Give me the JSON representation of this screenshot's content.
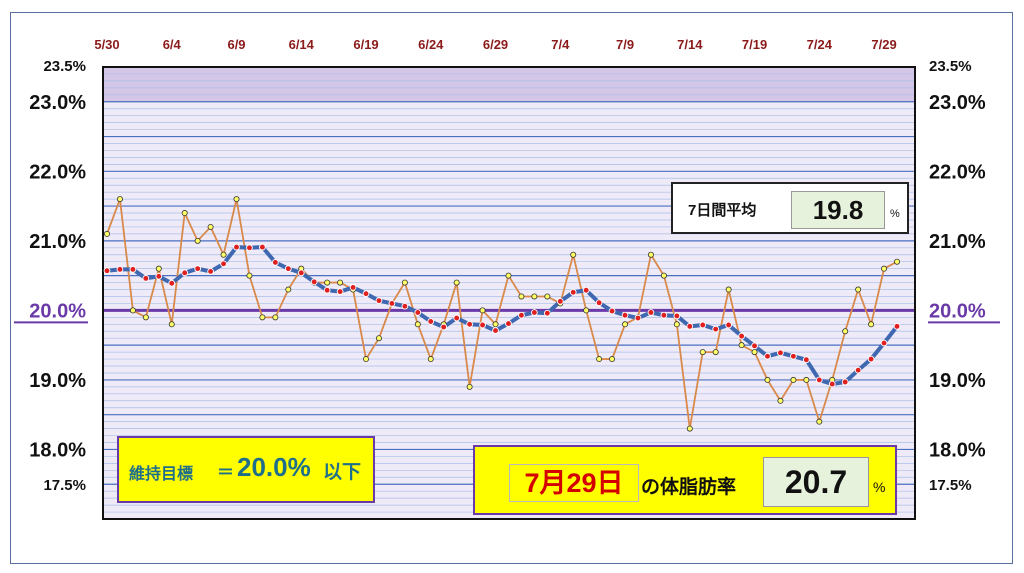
{
  "chart_data": {
    "type": "line",
    "x_tick_labels": [
      "5/30",
      "6/4",
      "6/9",
      "6/14",
      "6/19",
      "6/24",
      "6/29",
      "7/4",
      "7/9",
      "7/14",
      "7/19",
      "7/24",
      "7/29"
    ],
    "ylim": [
      17.0,
      23.5
    ],
    "y_tick_labels_left": [
      "23.5%",
      "23.0%",
      "22.0%",
      "21.0%",
      "20.0%",
      "19.0%",
      "18.0%",
      "17.5%"
    ],
    "y_tick_labels_right": [
      "23.5%",
      "23.0%",
      "22.0%",
      "21.0%",
      "20.0%",
      "19.0%",
      "18.0%",
      "17.5%"
    ],
    "goal_line": 20.0,
    "series": [
      {
        "values": [
          21.1,
          21.6,
          20.0,
          19.9,
          20.6,
          19.8,
          21.4,
          21.0,
          21.2,
          20.8,
          21.6,
          20.5,
          19.9,
          19.9,
          20.3,
          20.6,
          20.4,
          20.4,
          20.4,
          20.3,
          19.3,
          19.6,
          20.1,
          20.4,
          19.8,
          19.3,
          19.8,
          20.4,
          18.9,
          20.0,
          19.8,
          20.5,
          20.2,
          20.2,
          20.2,
          20.1,
          20.8,
          20.0,
          19.3,
          19.3,
          19.8,
          19.9,
          20.8,
          20.5,
          19.8,
          18.3,
          19.4,
          19.4,
          20.3,
          19.5,
          19.4,
          19.0,
          18.7,
          19.0,
          19.0,
          18.4,
          19.0,
          19.7,
          20.3,
          19.8,
          20.6,
          20.7
        ]
      },
      {
        "values": [
          20.57,
          20.59,
          20.59,
          20.46,
          20.49,
          20.39,
          20.54,
          20.6,
          20.56,
          20.67,
          20.91,
          20.9,
          20.91,
          20.69,
          20.6,
          20.54,
          20.41,
          20.29,
          20.27,
          20.33,
          20.24,
          20.14,
          20.1,
          20.06,
          19.97,
          19.84,
          19.76,
          19.89,
          19.8,
          19.79,
          19.71,
          19.81,
          19.93,
          19.97,
          19.96,
          20.13,
          20.26,
          20.29,
          20.11,
          19.99,
          19.93,
          19.89,
          19.97,
          19.93,
          19.92,
          19.77,
          19.79,
          19.73,
          19.79,
          19.63,
          19.49,
          19.34,
          19.39,
          19.34,
          19.29,
          19.0,
          18.94,
          18.97,
          19.14,
          19.3,
          19.53,
          19.77
        ]
      }
    ]
  },
  "avg_panel": {
    "label": "7日間平均",
    "value": "19.8",
    "unit": "%"
  },
  "goal_panel": {
    "label": "維持目標",
    "eq": "＝",
    "value": "20.0%",
    "suffix": "以下"
  },
  "today_panel": {
    "date": "7月29日",
    "label": "の体脂肪率",
    "value": "20.7",
    "unit": "%"
  },
  "colors": {
    "plot_band": "#d4c6e6",
    "plot_bg": "#eeeaf8",
    "grid_major": "#4a6fbf",
    "grid_minor": "#a9bfe6",
    "goal_line": "#6a3aa8",
    "daily_line": "#d98a4a",
    "daily_point": "#ffff66",
    "avg_line": "#3f68b0",
    "avg_point": "#e02020"
  }
}
